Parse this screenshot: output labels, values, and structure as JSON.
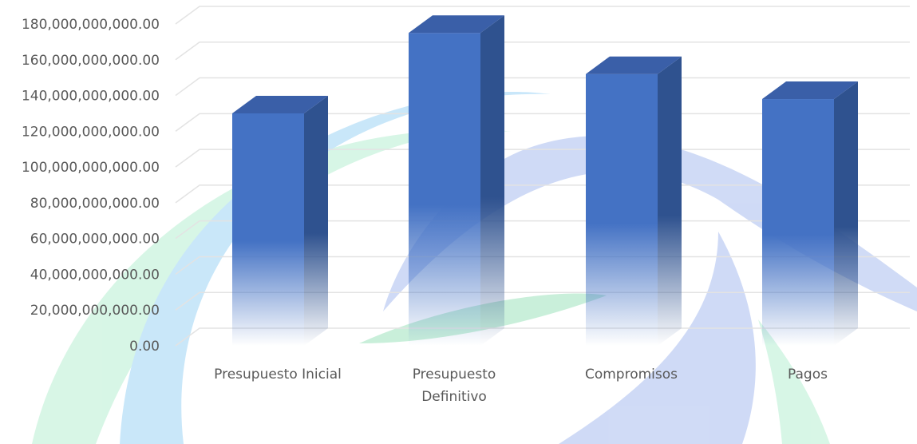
{
  "chart_data": {
    "type": "bar",
    "title": "",
    "xlabel": "",
    "ylabel": "",
    "categories": [
      [
        "Presupuesto Inicial"
      ],
      [
        "Presupuesto",
        "Definitivo"
      ],
      [
        "Compromisos"
      ],
      [
        "Pagos"
      ]
    ],
    "values": [
      130000000000,
      175000000000,
      152000000000,
      138000000000
    ],
    "ylim": [
      0,
      180000000000
    ],
    "yticks": [
      0,
      20000000000,
      40000000000,
      60000000000,
      80000000000,
      100000000000,
      120000000000,
      140000000000,
      160000000000,
      180000000000
    ],
    "ytick_labels": [
      "0.00",
      "20,000,000,000.00",
      "40,000,000,000.00",
      "60,000,000,000.00",
      "80,000,000,000.00",
      "100,000,000,000.00",
      "120,000,000,000.00",
      "140,000,000,000.00",
      "160,000,000,000.00",
      "180,000,000,000.00"
    ],
    "style": "3d-column",
    "grid": true,
    "colors": {
      "bar_front": "#4472C4",
      "bar_side": "#2F528F",
      "bar_top": "#3A5FA8",
      "gridline": "#E3E3E3",
      "text": "#595959",
      "watermark_blue": "#9DD4F5",
      "watermark_green": "#B8EFD2"
    }
  }
}
